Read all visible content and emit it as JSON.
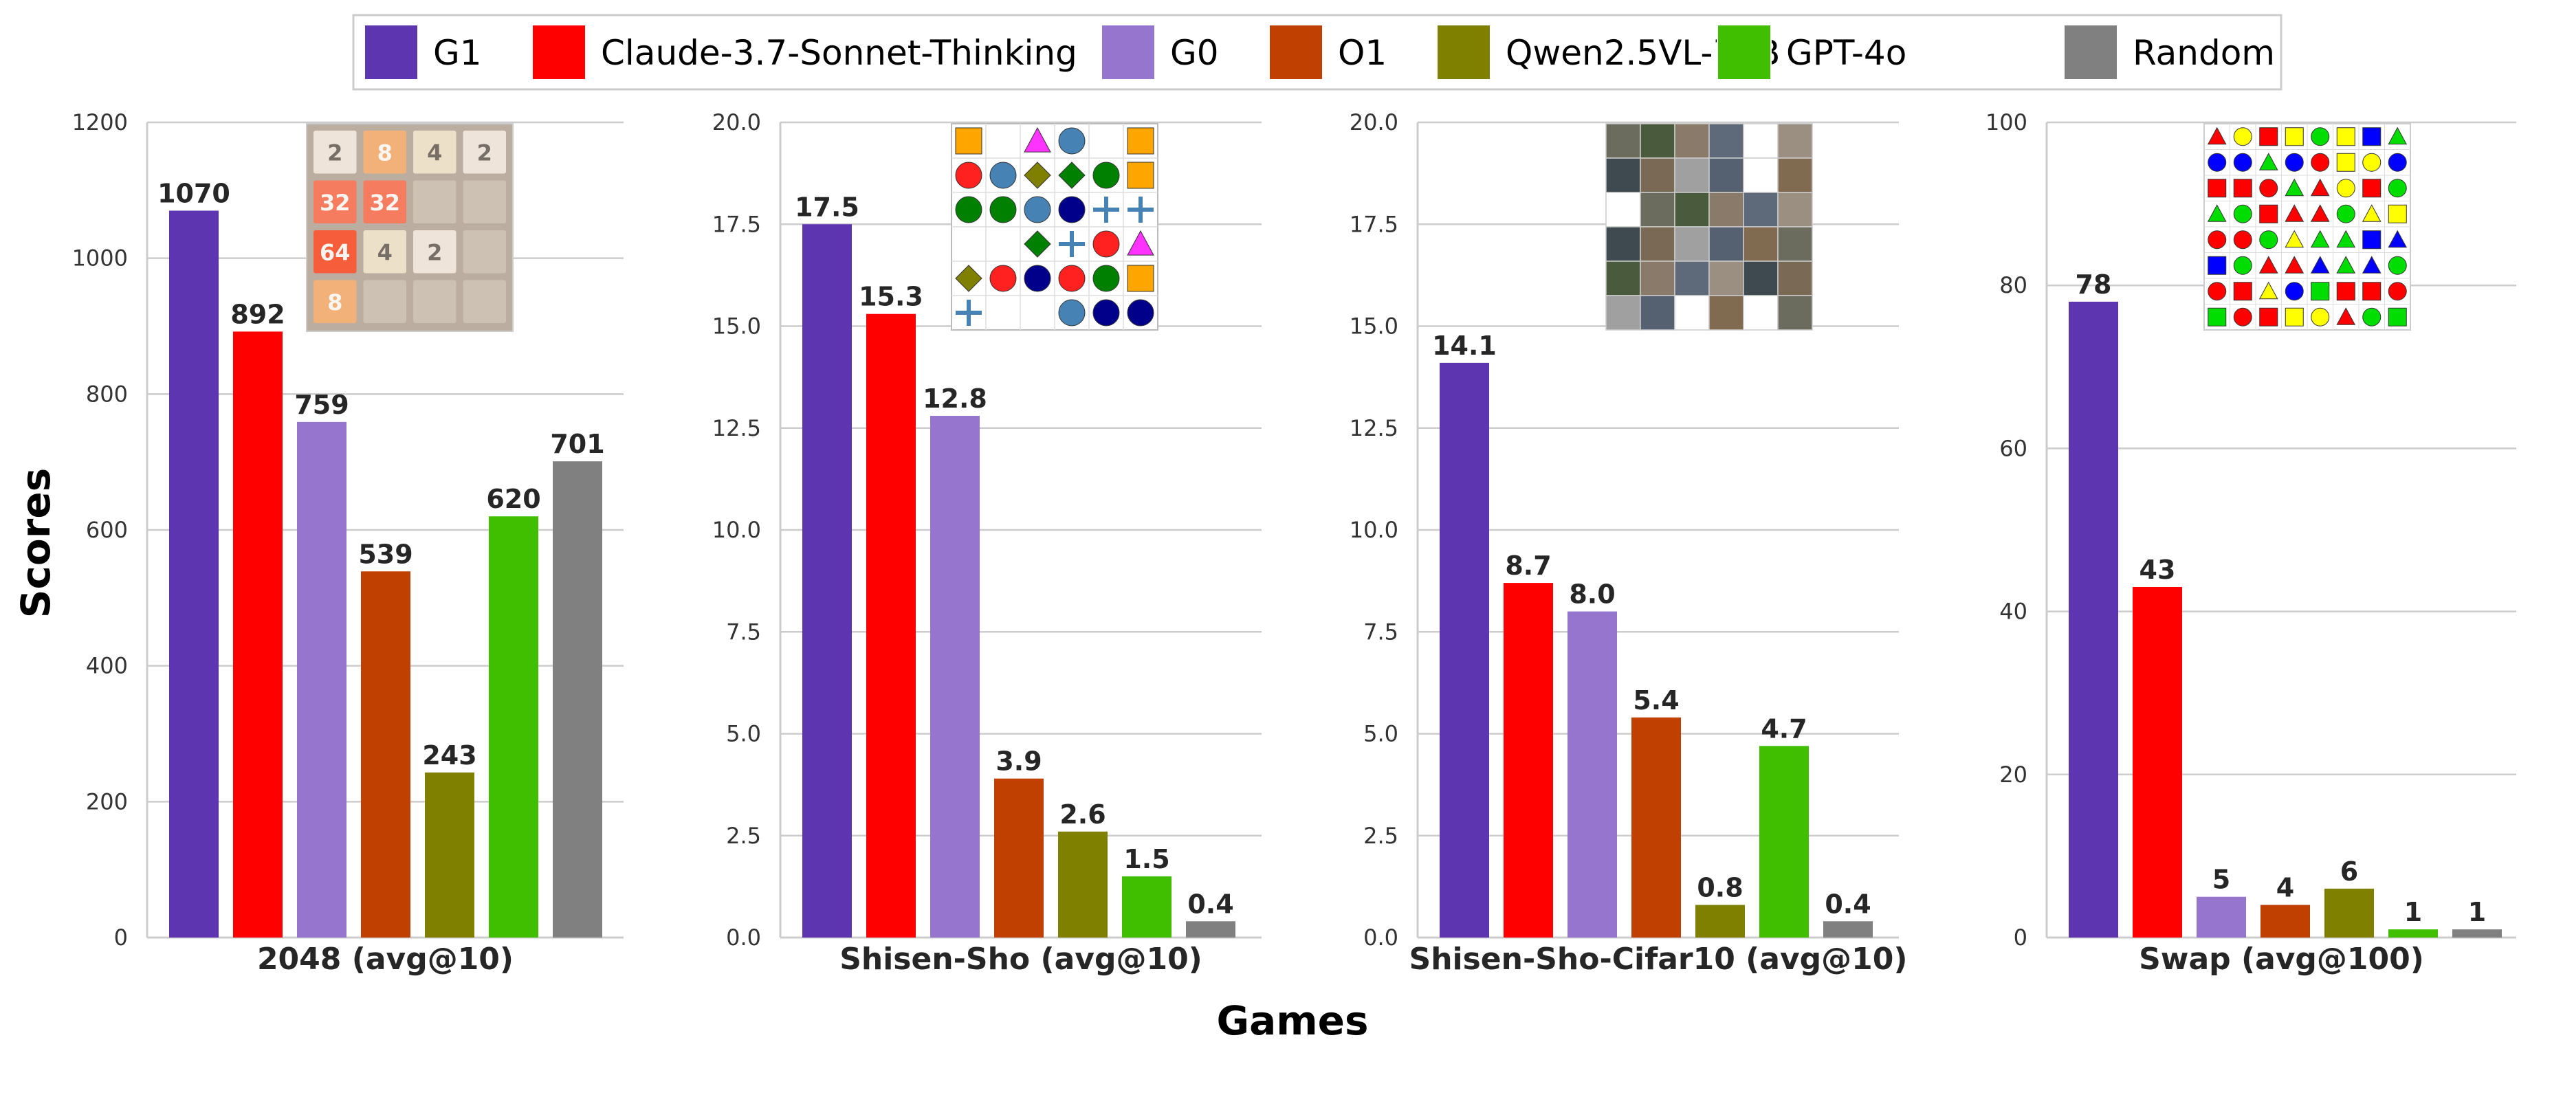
{
  "chart_data": {
    "type": "bar",
    "ylabel": "Scores",
    "xlabel": "Games",
    "legend_position": "top",
    "grid": true,
    "series": [
      {
        "name": "G1",
        "color": "#5e35b1"
      },
      {
        "name": "Claude-3.7-Sonnet-Thinking",
        "color": "#ff0000"
      },
      {
        "name": "G0",
        "color": "#9575cd"
      },
      {
        "name": "O1",
        "color": "#bf4000"
      },
      {
        "name": "Qwen2.5VL-72B",
        "color": "#808000"
      },
      {
        "name": "GPT-4o",
        "color": "#3fbf00"
      },
      {
        "name": "Random",
        "color": "#808080"
      }
    ],
    "panels": [
      {
        "category": "2048 (avg@10)",
        "ylim": [
          0,
          1200
        ],
        "yticks": [
          0,
          200,
          400,
          600,
          800,
          1000,
          1200
        ],
        "ytick_labels": [
          "0",
          "200",
          "400",
          "600",
          "800",
          "1000",
          "1200"
        ],
        "values": [
          1070,
          892,
          759,
          539,
          243,
          620,
          701
        ],
        "value_labels": [
          "1070",
          "892",
          "759",
          "539",
          "243",
          "620",
          "701"
        ],
        "inset": {
          "type": "2048-board",
          "cells": [
            [
              "2",
              "8",
              "4",
              "2"
            ],
            [
              "32",
              "32",
              "",
              ""
            ],
            [
              "64",
              "4",
              "2",
              ""
            ],
            [
              "8",
              "",
              "",
              ""
            ]
          ]
        }
      },
      {
        "category": "Shisen-Sho (avg@10)",
        "ylim": [
          0,
          20
        ],
        "yticks": [
          0,
          2.5,
          5,
          7.5,
          10,
          12.5,
          15,
          17.5,
          20
        ],
        "ytick_labels": [
          "0.0",
          "2.5",
          "5.0",
          "7.5",
          "10.0",
          "12.5",
          "15.0",
          "17.5",
          "20.0"
        ],
        "values": [
          17.5,
          15.3,
          12.8,
          3.9,
          2.6,
          1.5,
          0.4
        ],
        "value_labels": [
          "17.5",
          "15.3",
          "12.8",
          "3.9",
          "2.6",
          "1.5",
          "0.4"
        ],
        "inset": {
          "type": "shisen-sho-board",
          "cells": [
            [
              "orange-square",
              "",
              "magenta-triangle",
              "steel-circle",
              "",
              "orange-square"
            ],
            [
              "red-circle",
              "steel-circle",
              "olive-diamond",
              "green-diamond",
              "green-circle",
              "orange-square"
            ],
            [
              "green-circle",
              "green-circle",
              "steel-circle",
              "navy-circle",
              "blue-plus",
              "blue-plus"
            ],
            [
              "",
              "",
              "green-diamond",
              "blue-plus",
              "red-circle",
              "magenta-triangle"
            ],
            [
              "olive-diamond",
              "red-circle",
              "navy-circle",
              "red-circle",
              "green-circle",
              "orange-square"
            ],
            [
              "blue-plus",
              "",
              "",
              "steel-circle",
              "navy-circle",
              "navy-circle"
            ]
          ]
        }
      },
      {
        "category": "Shisen-Sho-Cifar10 (avg@10)",
        "ylim": [
          0,
          20
        ],
        "yticks": [
          0,
          2.5,
          5,
          7.5,
          10,
          12.5,
          15,
          17.5,
          20
        ],
        "ytick_labels": [
          "0.0",
          "2.5",
          "5.0",
          "7.5",
          "10.0",
          "12.5",
          "15.0",
          "17.5",
          "20.0"
        ],
        "values": [
          14.1,
          8.7,
          8.0,
          5.4,
          0.8,
          4.7,
          0.4
        ],
        "value_labels": [
          "14.1",
          "8.7",
          "8.0",
          "5.4",
          "0.8",
          "4.7",
          "0.4"
        ],
        "inset": {
          "type": "cifar-board",
          "cells": [
            [
              1,
              1,
              1,
              1,
              0,
              1
            ],
            [
              1,
              1,
              1,
              1,
              0,
              1
            ],
            [
              0,
              1,
              1,
              1,
              1,
              1
            ],
            [
              1,
              1,
              1,
              1,
              1,
              1
            ],
            [
              1,
              1,
              1,
              1,
              1,
              1
            ],
            [
              1,
              1,
              0,
              1,
              0,
              1
            ]
          ]
        }
      },
      {
        "category": "Swap (avg@100)",
        "ylim": [
          0,
          100
        ],
        "yticks": [
          0,
          20,
          40,
          60,
          80,
          100
        ],
        "ytick_labels": [
          "0",
          "20",
          "40",
          "60",
          "80",
          "100"
        ],
        "values": [
          78,
          43,
          5,
          4,
          6,
          1,
          1
        ],
        "value_labels": [
          "78",
          "43",
          "5",
          "4",
          "6",
          "1",
          "1"
        ],
        "inset": {
          "type": "swap-board",
          "cells": [
            [
              "red-triangle",
              "yellow-circle",
              "red-square",
              "yellow-square",
              "green-circle",
              "yellow-square",
              "blue-square",
              "green-triangle"
            ],
            [
              "blue-circle",
              "blue-circle",
              "green-triangle",
              "blue-circle",
              "red-circle",
              "yellow-square",
              "yellow-circle",
              "blue-circle"
            ],
            [
              "red-square",
              "red-square",
              "red-circle",
              "green-triangle",
              "red-triangle",
              "yellow-circle",
              "red-square",
              "green-circle"
            ],
            [
              "green-triangle",
              "green-circle",
              "red-square",
              "red-triangle",
              "red-triangle",
              "green-circle",
              "yellow-triangle",
              "yellow-square"
            ],
            [
              "red-circle",
              "red-circle",
              "green-circle",
              "yellow-triangle",
              "green-triangle",
              "green-triangle",
              "blue-square",
              "blue-triangle"
            ],
            [
              "blue-square",
              "green-circle",
              "red-triangle",
              "red-triangle",
              "blue-triangle",
              "green-triangle",
              "blue-triangle",
              "green-circle"
            ],
            [
              "red-circle",
              "red-square",
              "yellow-triangle",
              "blue-circle",
              "green-square",
              "red-square",
              "red-square",
              "red-circle"
            ],
            [
              "green-square",
              "red-circle",
              "red-square",
              "yellow-square",
              "yellow-circle",
              "red-triangle",
              "green-circle",
              "green-square"
            ]
          ]
        }
      }
    ]
  }
}
